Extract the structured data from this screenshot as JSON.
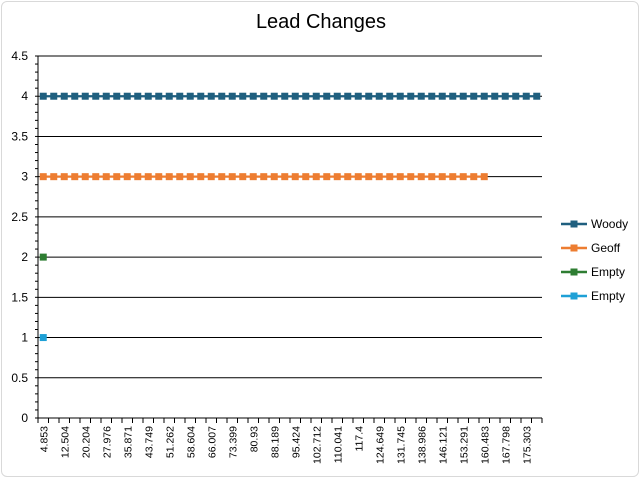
{
  "chart_data": {
    "type": "line",
    "title": "Lead Changes",
    "xlabel": "",
    "ylabel": "",
    "ylim": [
      0,
      4.5
    ],
    "y_ticks": [
      "0",
      "0.5",
      "1",
      "1.5",
      "2",
      "2.5",
      "3",
      "3.5",
      "4",
      "4.5"
    ],
    "x_tick_labels": [
      "4.853",
      "12.504",
      "20.204",
      "27.976",
      "35.871",
      "43.749",
      "51.262",
      "58.604",
      "66.007",
      "73.399",
      "80.93",
      "88.189",
      "95.424",
      "102.712",
      "110.041",
      "117.4",
      "124.649",
      "131.745",
      "138.986",
      "146.121",
      "153.291",
      "160.483",
      "167.798",
      "175.303"
    ],
    "x_label_every": 2,
    "n_categories": 48,
    "grid": true,
    "legend_position": "right",
    "series": [
      {
        "name": "Woody",
        "color": "#1f5f7f",
        "value": 4,
        "count": 48
      },
      {
        "name": "Geoff",
        "color": "#ed7d31",
        "value": 3,
        "count": 43
      },
      {
        "name": "Empty",
        "color": "#2e7d32",
        "value": 2,
        "count": 1
      },
      {
        "name": "Empty",
        "color": "#1ea0d6",
        "value": 1,
        "count": 1
      }
    ]
  }
}
